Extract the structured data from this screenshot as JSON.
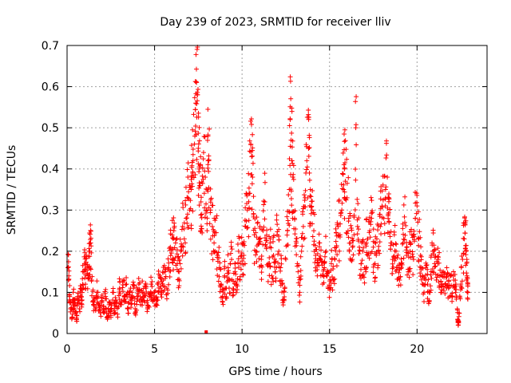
{
  "chart_data": {
    "type": "scatter",
    "title": "Day 239 of 2023, SRMTID for receiver lliv",
    "xlabel": "GPS time / hours",
    "ylabel": "SRMTID / TECUs",
    "xlim": [
      0,
      24
    ],
    "ylim": [
      0,
      0.7
    ],
    "xticks": [
      0,
      5,
      10,
      15,
      20
    ],
    "yticks": [
      0,
      0.1,
      0.2,
      0.3,
      0.4,
      0.5,
      0.6,
      0.7
    ],
    "xtick_labels": [
      "0",
      "5",
      "10",
      "15",
      "20"
    ],
    "ytick_labels": [
      "0",
      "0.1",
      "0.2",
      "0.3",
      "0.4",
      "0.5",
      "0.6",
      "0.7"
    ],
    "grid": true,
    "marker": "plus",
    "color": "#ff0000",
    "series": [
      {
        "name": "SRMTID",
        "points": [
          [
            0.05,
            0.16
          ],
          [
            0.1,
            0.14
          ],
          [
            0.15,
            0.09
          ],
          [
            0.2,
            0.06
          ],
          [
            0.3,
            0.04
          ],
          [
            0.35,
            0.1
          ],
          [
            0.4,
            0.08
          ],
          [
            0.5,
            0.05
          ],
          [
            0.55,
            0.03
          ],
          [
            0.6,
            0.09
          ],
          [
            0.7,
            0.06
          ],
          [
            0.8,
            0.11
          ],
          [
            0.85,
            0.07
          ],
          [
            0.9,
            0.15
          ],
          [
            1.0,
            0.17
          ],
          [
            1.05,
            0.12
          ],
          [
            1.1,
            0.19
          ],
          [
            1.2,
            0.14
          ],
          [
            1.25,
            0.16
          ],
          [
            1.3,
            0.2
          ],
          [
            1.35,
            0.22
          ],
          [
            1.4,
            0.13
          ],
          [
            1.5,
            0.08
          ],
          [
            1.6,
            0.06
          ],
          [
            1.7,
            0.1
          ],
          [
            1.8,
            0.07
          ],
          [
            1.9,
            0.05
          ],
          [
            2.0,
            0.08
          ],
          [
            2.1,
            0.06
          ],
          [
            2.2,
            0.09
          ],
          [
            2.3,
            0.04
          ],
          [
            2.4,
            0.07
          ],
          [
            2.5,
            0.05
          ],
          [
            2.6,
            0.1
          ],
          [
            2.7,
            0.06
          ],
          [
            2.8,
            0.08
          ],
          [
            2.9,
            0.04
          ],
          [
            3.0,
            0.11
          ],
          [
            3.1,
            0.07
          ],
          [
            3.2,
            0.13
          ],
          [
            3.3,
            0.09
          ],
          [
            3.4,
            0.12
          ],
          [
            3.5,
            0.06
          ],
          [
            3.6,
            0.1
          ],
          [
            3.7,
            0.08
          ],
          [
            3.8,
            0.11
          ],
          [
            3.9,
            0.05
          ],
          [
            4.0,
            0.09
          ],
          [
            4.1,
            0.12
          ],
          [
            4.2,
            0.07
          ],
          [
            4.3,
            0.1
          ],
          [
            4.4,
            0.08
          ],
          [
            4.5,
            0.11
          ],
          [
            4.6,
            0.06
          ],
          [
            4.7,
            0.09
          ],
          [
            4.8,
            0.12
          ],
          [
            4.9,
            0.08
          ],
          [
            5.0,
            0.1
          ],
          [
            5.1,
            0.07
          ],
          [
            5.2,
            0.12
          ],
          [
            5.3,
            0.14
          ],
          [
            5.4,
            0.1
          ],
          [
            5.5,
            0.13
          ],
          [
            5.6,
            0.15
          ],
          [
            5.7,
            0.11
          ],
          [
            5.8,
            0.16
          ],
          [
            5.9,
            0.21
          ],
          [
            6.0,
            0.24
          ],
          [
            6.05,
            0.18
          ],
          [
            6.1,
            0.25
          ],
          [
            6.2,
            0.22
          ],
          [
            6.3,
            0.17
          ],
          [
            6.4,
            0.15
          ],
          [
            6.5,
            0.2
          ],
          [
            6.6,
            0.26
          ],
          [
            6.7,
            0.23
          ],
          [
            6.8,
            0.28
          ],
          [
            6.9,
            0.33
          ],
          [
            7.0,
            0.3
          ],
          [
            7.1,
            0.35
          ],
          [
            7.15,
            0.38
          ],
          [
            7.2,
            0.42
          ],
          [
            7.3,
            0.48
          ],
          [
            7.35,
            0.56
          ],
          [
            7.4,
            0.61
          ],
          [
            7.45,
            0.58
          ],
          [
            7.5,
            0.45
          ],
          [
            7.55,
            0.4
          ],
          [
            7.6,
            0.36
          ],
          [
            7.65,
            0.32
          ],
          [
            7.7,
            0.29
          ],
          [
            7.8,
            0.44
          ],
          [
            7.9,
            0.38
          ],
          [
            8.0,
            0.25
          ],
          [
            8.05,
            0.48
          ],
          [
            8.1,
            0.42
          ],
          [
            8.2,
            0.3
          ],
          [
            8.3,
            0.26
          ],
          [
            8.4,
            0.22
          ],
          [
            8.5,
            0.28
          ],
          [
            8.6,
            0.19
          ],
          [
            8.7,
            0.16
          ],
          [
            8.8,
            0.12
          ],
          [
            8.9,
            0.09
          ],
          [
            9.0,
            0.14
          ],
          [
            9.1,
            0.11
          ],
          [
            9.2,
            0.16
          ],
          [
            9.3,
            0.13
          ],
          [
            9.4,
            0.18
          ],
          [
            9.5,
            0.1
          ],
          [
            9.6,
            0.15
          ],
          [
            9.7,
            0.12
          ],
          [
            9.8,
            0.2
          ],
          [
            9.9,
            0.17
          ],
          [
            10.0,
            0.22
          ],
          [
            10.1,
            0.19
          ],
          [
            10.2,
            0.26
          ],
          [
            10.3,
            0.3
          ],
          [
            10.4,
            0.34
          ],
          [
            10.5,
            0.46
          ],
          [
            10.55,
            0.43
          ],
          [
            10.6,
            0.38
          ],
          [
            10.7,
            0.24
          ],
          [
            10.8,
            0.2
          ],
          [
            10.9,
            0.27
          ],
          [
            11.0,
            0.23
          ],
          [
            11.1,
            0.18
          ],
          [
            11.2,
            0.25
          ],
          [
            11.3,
            0.32
          ],
          [
            11.4,
            0.21
          ],
          [
            11.5,
            0.17
          ],
          [
            11.6,
            0.22
          ],
          [
            11.7,
            0.14
          ],
          [
            11.8,
            0.19
          ],
          [
            11.9,
            0.15
          ],
          [
            12.0,
            0.24
          ],
          [
            12.1,
            0.2
          ],
          [
            12.2,
            0.16
          ],
          [
            12.3,
            0.12
          ],
          [
            12.4,
            0.08
          ],
          [
            12.5,
            0.18
          ],
          [
            12.6,
            0.25
          ],
          [
            12.7,
            0.35
          ],
          [
            12.75,
            0.52
          ],
          [
            12.8,
            0.47
          ],
          [
            12.85,
            0.42
          ],
          [
            12.9,
            0.38
          ],
          [
            13.0,
            0.28
          ],
          [
            13.1,
            0.22
          ],
          [
            13.2,
            0.15
          ],
          [
            13.3,
            0.1
          ],
          [
            13.4,
            0.2
          ],
          [
            13.5,
            0.26
          ],
          [
            13.6,
            0.33
          ],
          [
            13.7,
            0.42
          ],
          [
            13.8,
            0.45
          ],
          [
            13.85,
            0.39
          ],
          [
            13.9,
            0.35
          ],
          [
            14.0,
            0.3
          ],
          [
            14.1,
            0.25
          ],
          [
            14.2,
            0.19
          ],
          [
            14.3,
            0.14
          ],
          [
            14.4,
            0.22
          ],
          [
            14.5,
            0.18
          ],
          [
            14.6,
            0.12
          ],
          [
            14.7,
            0.16
          ],
          [
            14.8,
            0.2
          ],
          [
            14.9,
            0.15
          ],
          [
            15.0,
            0.11
          ],
          [
            15.1,
            0.17
          ],
          [
            15.2,
            0.13
          ],
          [
            15.3,
            0.18
          ],
          [
            15.4,
            0.21
          ],
          [
            15.5,
            0.26
          ],
          [
            15.6,
            0.24
          ],
          [
            15.7,
            0.3
          ],
          [
            15.8,
            0.35
          ],
          [
            15.85,
            0.4
          ],
          [
            15.9,
            0.37
          ],
          [
            16.0,
            0.33
          ],
          [
            16.1,
            0.28
          ],
          [
            16.2,
            0.22
          ],
          [
            16.3,
            0.18
          ],
          [
            16.4,
            0.24
          ],
          [
            16.5,
            0.5
          ],
          [
            16.6,
            0.26
          ],
          [
            16.7,
            0.21
          ],
          [
            16.8,
            0.17
          ],
          [
            16.9,
            0.2
          ],
          [
            17.0,
            0.16
          ],
          [
            17.1,
            0.22
          ],
          [
            17.2,
            0.19
          ],
          [
            17.3,
            0.25
          ],
          [
            17.4,
            0.28
          ],
          [
            17.5,
            0.21
          ],
          [
            17.6,
            0.17
          ],
          [
            17.7,
            0.23
          ],
          [
            17.8,
            0.2
          ],
          [
            17.9,
            0.26
          ],
          [
            18.0,
            0.31
          ],
          [
            18.1,
            0.28
          ],
          [
            18.2,
            0.35
          ],
          [
            18.3,
            0.38
          ],
          [
            18.35,
            0.33
          ],
          [
            18.4,
            0.27
          ],
          [
            18.5,
            0.22
          ],
          [
            18.6,
            0.18
          ],
          [
            18.7,
            0.24
          ],
          [
            18.8,
            0.2
          ],
          [
            18.9,
            0.16
          ],
          [
            19.0,
            0.13
          ],
          [
            19.1,
            0.17
          ],
          [
            19.2,
            0.22
          ],
          [
            19.3,
            0.27
          ],
          [
            19.4,
            0.19
          ],
          [
            19.5,
            0.15
          ],
          [
            19.6,
            0.2
          ],
          [
            19.7,
            0.24
          ],
          [
            19.8,
            0.18
          ],
          [
            19.9,
            0.28
          ],
          [
            20.0,
            0.31
          ],
          [
            20.1,
            0.23
          ],
          [
            20.2,
            0.19
          ],
          [
            20.3,
            0.14
          ],
          [
            20.4,
            0.1
          ],
          [
            20.5,
            0.16
          ],
          [
            20.6,
            0.12
          ],
          [
            20.7,
            0.08
          ],
          [
            20.8,
            0.15
          ],
          [
            20.9,
            0.2
          ],
          [
            21.0,
            0.17
          ],
          [
            21.1,
            0.13
          ],
          [
            21.2,
            0.18
          ],
          [
            21.3,
            0.14
          ],
          [
            21.4,
            0.1
          ],
          [
            21.5,
            0.15
          ],
          [
            21.6,
            0.12
          ],
          [
            21.7,
            0.16
          ],
          [
            21.8,
            0.11
          ],
          [
            21.9,
            0.14
          ],
          [
            22.0,
            0.09
          ],
          [
            22.1,
            0.13
          ],
          [
            22.2,
            0.1
          ],
          [
            22.3,
            0.06
          ],
          [
            22.35,
            0.02
          ],
          [
            22.4,
            0.05
          ],
          [
            22.5,
            0.12
          ],
          [
            22.6,
            0.18
          ],
          [
            22.7,
            0.23
          ],
          [
            22.75,
            0.27
          ],
          [
            22.8,
            0.2
          ],
          [
            22.85,
            0.14
          ],
          [
            22.9,
            0.1
          ]
        ]
      }
    ],
    "outlier_marker": {
      "x": 7.95,
      "y": 0.0
    }
  }
}
